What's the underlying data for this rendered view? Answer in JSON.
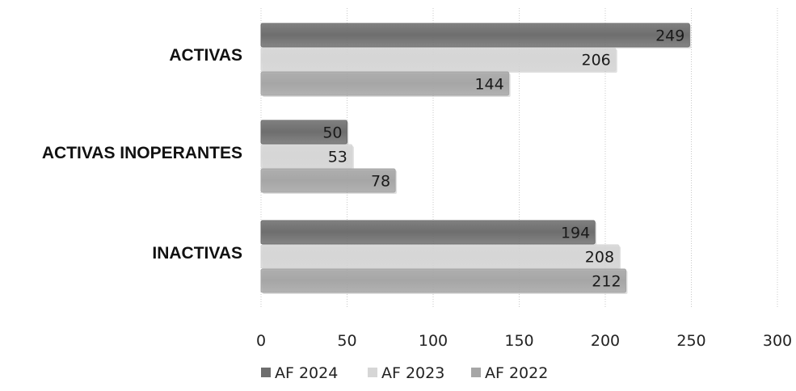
{
  "chart_data": {
    "type": "bar",
    "orientation": "horizontal",
    "title": "",
    "xlabel": "",
    "ylabel": "",
    "categories": [
      "ACTIVAS",
      "ACTIVAS INOPERANTES",
      "INACTIVAS"
    ],
    "series": [
      {
        "name": "AF 2024",
        "values": [
          249,
          50,
          194
        ],
        "color": "#6e6e6e"
      },
      {
        "name": "AF 2023",
        "values": [
          206,
          53,
          208
        ],
        "color": "#d6d6d6"
      },
      {
        "name": "AF 2022",
        "values": [
          144,
          78,
          212
        ],
        "color": "#a6a6a6"
      }
    ],
    "xlim": [
      0,
      300
    ],
    "x_ticks": [
      "0",
      "50",
      "100",
      "150",
      "200",
      "250",
      "300"
    ],
    "grid": true,
    "legend_position": "bottom"
  }
}
